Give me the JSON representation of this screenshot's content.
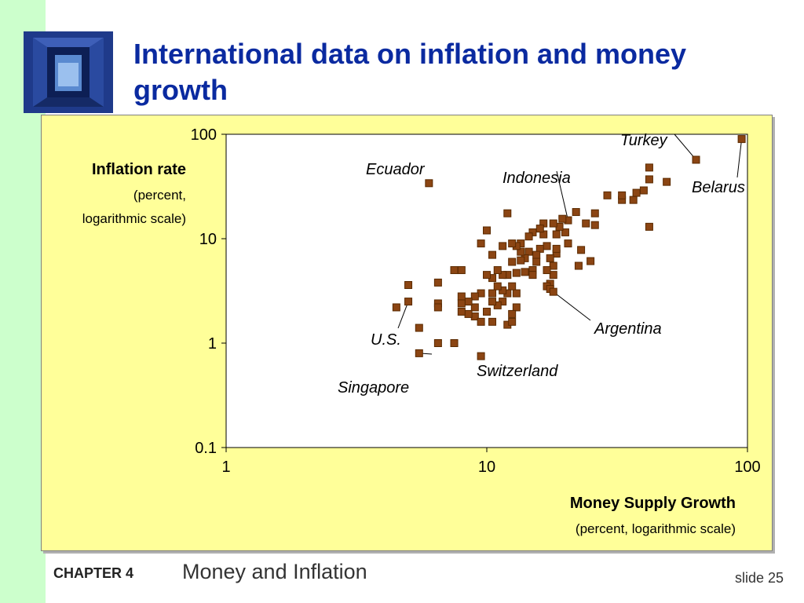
{
  "slide": {
    "title": "International data on inflation and money growth",
    "footer": {
      "chapter": "CHAPTER 4",
      "topic": "Money and Inflation",
      "slide_number": "slide 25"
    }
  },
  "colors": {
    "title": "#0a2aa0",
    "left_bar": "#ccffcc",
    "chart_bg": "#ffff99",
    "plot_bg": "#ffffff",
    "marker": "#8b4513",
    "marker_border": "#5a2a00"
  },
  "chart_data": {
    "type": "scatter",
    "xscale": "log",
    "yscale": "log",
    "xlim": [
      1,
      100
    ],
    "ylim": [
      0.1,
      100
    ],
    "xticks": [
      1,
      10,
      100
    ],
    "xtick_labels": [
      "1",
      "10",
      "100"
    ],
    "yticks": [
      0.1,
      1,
      10,
      100
    ],
    "ytick_labels": [
      "0.1",
      "1",
      "10",
      "100"
    ],
    "xlabel": "Money Supply Growth",
    "xlabel_sub": "(percent, logarithmic scale)",
    "ylabel": "Inflation rate",
    "ylabel_sub1": "(percent,",
    "ylabel_sub2": "logarithmic scale)",
    "grid": false,
    "annotations": [
      "Turkey",
      "Belarus",
      "Ecuador",
      "Indonesia",
      "Argentina",
      "U.S.",
      "Switzerland",
      "Singapore"
    ],
    "points": [
      [
        95.0,
        90.0
      ],
      [
        63.5,
        57.0
      ],
      [
        42.0,
        48.0
      ],
      [
        42.0,
        13.0
      ],
      [
        49.0,
        35.0
      ],
      [
        42.0,
        37.0
      ],
      [
        40.0,
        29.0
      ],
      [
        36.5,
        23.5
      ],
      [
        37.5,
        27.5
      ],
      [
        33.0,
        23.5
      ],
      [
        33.0,
        26.0
      ],
      [
        29.0,
        26.0
      ],
      [
        26.0,
        17.5
      ],
      [
        26.0,
        13.5
      ],
      [
        25.0,
        6.1
      ],
      [
        24.0,
        14.0
      ],
      [
        23.0,
        7.8
      ],
      [
        22.5,
        5.5
      ],
      [
        22.0,
        18.0
      ],
      [
        20.5,
        15.0
      ],
      [
        20.0,
        11.5
      ],
      [
        20.5,
        9.0
      ],
      [
        19.5,
        15.5
      ],
      [
        19.0,
        13.0
      ],
      [
        18.5,
        11.0
      ],
      [
        18.0,
        14.0
      ],
      [
        18.5,
        7.2
      ],
      [
        18.0,
        5.5
      ],
      [
        18.5,
        8.0
      ],
      [
        17.5,
        6.5
      ],
      [
        18.0,
        4.5
      ],
      [
        17.5,
        3.7
      ],
      [
        17.0,
        3.5
      ],
      [
        17.5,
        3.3
      ],
      [
        17.0,
        5.0
      ],
      [
        18.0,
        3.1
      ],
      [
        17.0,
        8.5
      ],
      [
        16.5,
        11.0
      ],
      [
        16.5,
        14.0
      ],
      [
        16.0,
        12.5
      ],
      [
        16.0,
        8.0
      ],
      [
        15.5,
        7.0
      ],
      [
        15.0,
        11.5
      ],
      [
        15.5,
        6.0
      ],
      [
        15.0,
        5.0
      ],
      [
        15.0,
        4.5
      ],
      [
        14.5,
        7.5
      ],
      [
        14.5,
        10.5
      ],
      [
        14.0,
        6.5
      ],
      [
        14.0,
        4.8
      ],
      [
        13.5,
        7.5
      ],
      [
        13.5,
        9.0
      ],
      [
        13.5,
        6.2
      ],
      [
        13.0,
        8.5
      ],
      [
        13.0,
        4.7
      ],
      [
        13.0,
        3.0
      ],
      [
        13.0,
        2.2
      ],
      [
        12.5,
        9.0
      ],
      [
        12.5,
        6.0
      ],
      [
        12.0,
        4.5
      ],
      [
        12.5,
        3.5
      ],
      [
        12.0,
        3.0
      ],
      [
        12.0,
        17.5
      ],
      [
        11.5,
        8.5
      ],
      [
        11.5,
        4.5
      ],
      [
        11.5,
        3.2
      ],
      [
        12.0,
        1.5
      ],
      [
        12.5,
        1.6
      ],
      [
        12.5,
        1.9
      ],
      [
        11.0,
        5.0
      ],
      [
        11.0,
        3.5
      ],
      [
        11.5,
        2.5
      ],
      [
        11.0,
        2.3
      ],
      [
        10.5,
        7.0
      ],
      [
        10.5,
        4.2
      ],
      [
        10.5,
        3.0
      ],
      [
        10.5,
        1.6
      ],
      [
        10.0,
        12.0
      ],
      [
        10.0,
        4.5
      ],
      [
        10.5,
        2.5
      ],
      [
        10.0,
        2.0
      ],
      [
        9.5,
        9.0
      ],
      [
        9.5,
        3.0
      ],
      [
        9.0,
        2.2
      ],
      [
        9.0,
        1.8
      ],
      [
        9.5,
        1.6
      ],
      [
        9.0,
        2.8
      ],
      [
        8.5,
        2.5
      ],
      [
        8.5,
        1.9
      ],
      [
        8.0,
        5.0
      ],
      [
        8.0,
        2.8
      ],
      [
        8.0,
        2.4
      ],
      [
        8.0,
        2.0
      ],
      [
        7.5,
        1.0
      ],
      [
        7.5,
        5.0
      ],
      [
        6.5,
        3.8
      ],
      [
        6.5,
        2.4
      ],
      [
        6.5,
        2.2
      ],
      [
        6.0,
        34.0
      ],
      [
        5.0,
        2.5
      ],
      [
        4.5,
        2.2
      ],
      [
        5.0,
        3.6
      ],
      [
        5.5,
        1.4
      ],
      [
        6.5,
        1.0
      ],
      [
        5.5,
        0.8
      ],
      [
        9.5,
        0.75
      ]
    ]
  }
}
